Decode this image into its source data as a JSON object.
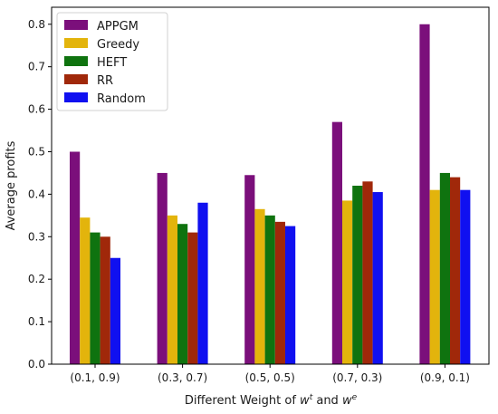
{
  "chart_data": {
    "type": "bar",
    "title": "",
    "xlabel": "Different Weight of w^t and w^e",
    "xlabel_parts": {
      "prefix": "Different Weight of ",
      "w1": "w",
      "sup1": "t",
      "mid": " and ",
      "w2": "w",
      "sup2": "e"
    },
    "ylabel": "Average profits",
    "ylim": [
      0,
      0.84
    ],
    "yticks": [
      "0.0",
      "0.1",
      "0.2",
      "0.3",
      "0.4",
      "0.5",
      "0.6",
      "0.7",
      "0.8"
    ],
    "categories": [
      "(0.1, 0.9)",
      "(0.3, 0.7)",
      "(0.5, 0.5)",
      "(0.7, 0.3)",
      "(0.9, 0.1)"
    ],
    "series": [
      {
        "name": "APPGM",
        "color": "#7b0f7b",
        "values": [
          0.5,
          0.45,
          0.445,
          0.57,
          0.8
        ]
      },
      {
        "name": "Greedy",
        "color": "#e3b40c",
        "values": [
          0.345,
          0.35,
          0.365,
          0.385,
          0.41
        ]
      },
      {
        "name": "HEFT",
        "color": "#0f730f",
        "values": [
          0.31,
          0.33,
          0.35,
          0.42,
          0.45
        ]
      },
      {
        "name": "RR",
        "color": "#a0280a",
        "values": [
          0.3,
          0.31,
          0.335,
          0.43,
          0.44
        ]
      },
      {
        "name": "Random",
        "color": "#1010f0",
        "values": [
          0.25,
          0.38,
          0.325,
          0.405,
          0.41
        ]
      }
    ],
    "grid": false,
    "legend_position": "top-left"
  }
}
